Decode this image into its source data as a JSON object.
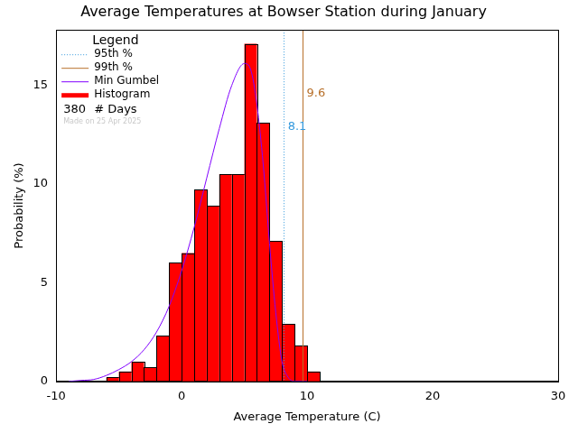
{
  "chart_data": {
    "type": "histogram",
    "title": "Average Temperatures at Bowser Station during January",
    "x_label": "Average Temperature (C)",
    "y_label": "Probability (%)",
    "bins": [
      -6,
      -5,
      -4,
      -3,
      -2,
      -1,
      0,
      1,
      2,
      3,
      4,
      5,
      6,
      7,
      8,
      9,
      10,
      11
    ],
    "values": [
      0.2,
      0.5,
      1.0,
      0.7,
      2.3,
      6.0,
      6.5,
      9.7,
      8.9,
      10.5,
      10.5,
      17.1,
      13.1,
      7.1,
      2.9,
      1.8,
      0.5
    ],
    "name": "Histogram",
    "color": "#ff0000",
    "curve": {
      "name": "Min Gumbel",
      "color": "#8000ff",
      "x": [
        -9,
        -8,
        -7,
        -6,
        -5,
        -4,
        -3,
        -2,
        -1,
        0,
        1,
        2,
        3,
        4,
        5,
        5.5,
        6,
        6.5,
        7,
        7.5,
        8,
        8.5,
        9,
        10
      ],
      "values": [
        0.0,
        0.05,
        0.1,
        0.3,
        0.6,
        1.0,
        1.6,
        2.5,
        3.8,
        5.6,
        7.8,
        10.3,
        12.8,
        15.0,
        16.1,
        15.8,
        14.0,
        11.0,
        7.0,
        3.5,
        1.0,
        0.2,
        0.0,
        0.0
      ]
    },
    "reference_lines": [
      {
        "name": "95th %",
        "value": 8.1,
        "color": "#3399dd",
        "line_style": "dotted"
      },
      {
        "name": "99th %",
        "value": 9.6,
        "color": "#b8702a",
        "line_style": "solid"
      }
    ],
    "legend": "upper left",
    "legend_title": "Legend",
    "days": 380,
    "days_label": "# Days",
    "note": "Made on 25 Apr 2025",
    "xlim": [
      -10,
      30
    ],
    "xticks": [
      -10,
      0,
      10,
      20,
      30
    ],
    "ylim": [
      0,
      17.8
    ],
    "yticks": [
      0,
      5,
      10,
      15
    ],
    "grid": false
  }
}
